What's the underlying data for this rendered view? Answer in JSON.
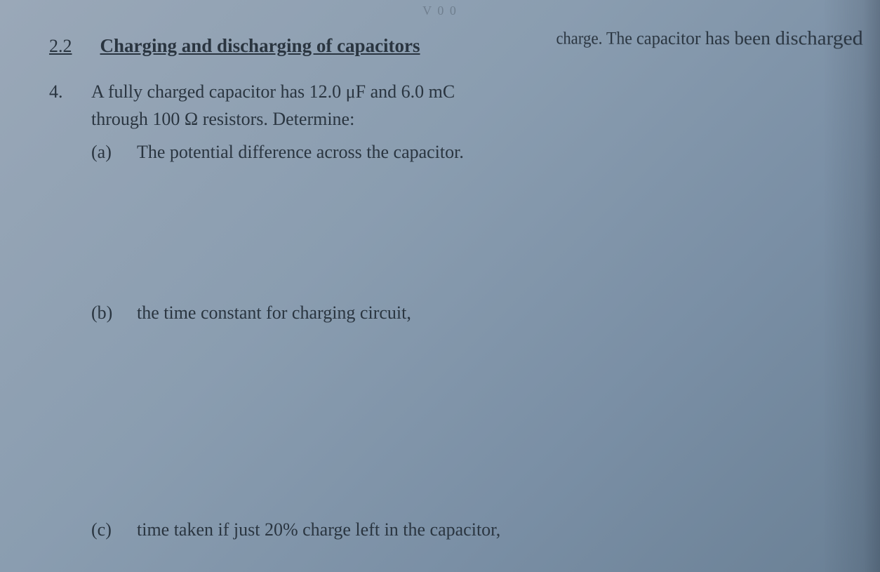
{
  "page": {
    "background_gradient": [
      "#9aa8b8",
      "#8a9db0",
      "#7a8fa5",
      "#6a8095"
    ],
    "text_color": "#2a3540",
    "font_family": "Times New Roman",
    "base_fontsize": 26
  },
  "faded_header": "V 0 0",
  "section": {
    "number": "2.2",
    "title": "Charging and discharging of capacitors"
  },
  "top_right_fragment": "charge. The capacitor has been discharged",
  "question": {
    "number": "4.",
    "line1": "A fully charged capacitor has 12.0 μF and 6.0 mC",
    "line2": "through 100 Ω resistors. Determine:",
    "subs": {
      "a": {
        "label": "(a)",
        "text": "The potential difference across the capacitor."
      },
      "b": {
        "label": "(b)",
        "text": "the time constant for charging circuit,"
      },
      "c": {
        "label": "(c)",
        "text": "time taken if just 20% charge left in the capacitor,"
      }
    }
  }
}
